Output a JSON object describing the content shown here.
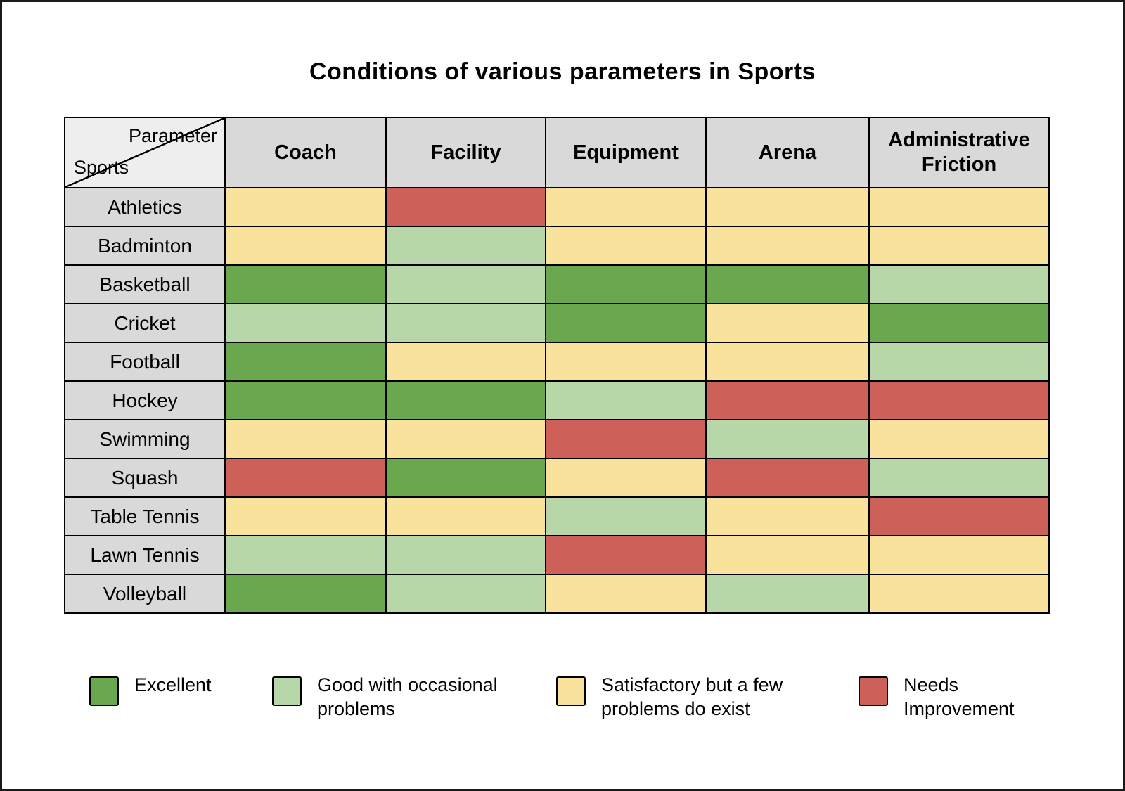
{
  "title": "Conditions of various parameters in Sports",
  "corner": {
    "top_label": "Parameter",
    "bottom_label": "Sports"
  },
  "colors": {
    "excellent": "#6aa84f",
    "good": "#b7d7a8",
    "satisfactory": "#f9e29b",
    "needs_improvement": "#cd615a",
    "header_bg": "#d9d9d9",
    "row_label_bg": "#d9d9d9",
    "corner_bg": "#eeeeee",
    "border": "#000000",
    "background": "#ffffff"
  },
  "chart_data": {
    "type": "heatmap",
    "title": "Conditions of various parameters in Sports",
    "columns": [
      "Coach",
      "Facility",
      "Equipment",
      "Arena",
      "Administrative Friction"
    ],
    "rows": [
      "Athletics",
      "Badminton",
      "Basketball",
      "Cricket",
      "Football",
      "Hockey",
      "Swimming",
      "Squash",
      "Table Tennis",
      "Lawn Tennis",
      "Volleyball"
    ],
    "values": [
      [
        "satisfactory",
        "needs_improvement",
        "satisfactory",
        "satisfactory",
        "satisfactory"
      ],
      [
        "satisfactory",
        "good",
        "satisfactory",
        "satisfactory",
        "satisfactory"
      ],
      [
        "excellent",
        "good",
        "excellent",
        "excellent",
        "good"
      ],
      [
        "good",
        "good",
        "excellent",
        "satisfactory",
        "excellent"
      ],
      [
        "excellent",
        "satisfactory",
        "satisfactory",
        "satisfactory",
        "good"
      ],
      [
        "excellent",
        "excellent",
        "good",
        "needs_improvement",
        "needs_improvement"
      ],
      [
        "satisfactory",
        "satisfactory",
        "needs_improvement",
        "good",
        "satisfactory"
      ],
      [
        "needs_improvement",
        "excellent",
        "satisfactory",
        "needs_improvement",
        "good"
      ],
      [
        "satisfactory",
        "satisfactory",
        "good",
        "satisfactory",
        "needs_improvement"
      ],
      [
        "good",
        "good",
        "needs_improvement",
        "satisfactory",
        "satisfactory"
      ],
      [
        "excellent",
        "good",
        "satisfactory",
        "good",
        "satisfactory"
      ]
    ],
    "legend_position": "bottom",
    "legend": [
      {
        "key": "excellent",
        "label": "Excellent"
      },
      {
        "key": "good",
        "label": "Good with occasional problems"
      },
      {
        "key": "satisfactory",
        "label": "Satisfactory but a few problems do exist"
      },
      {
        "key": "needs_improvement",
        "label": "Needs Improvement"
      }
    ]
  }
}
